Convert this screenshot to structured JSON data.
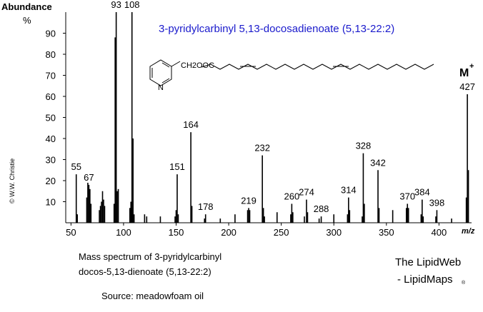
{
  "chart_data": {
    "type": "spectrum",
    "title": "3-pyridylcarbinyl 5,13-docosadienoate (5,13-22:2)",
    "y_label": "Abundance",
    "y_unit": "%",
    "x_label": "m/z",
    "molecular_ion": "M",
    "molecular_ion_charge": "+",
    "structure": {
      "group": "CH2OOC",
      "atom": "N"
    },
    "copyright": "© W.W. Christie",
    "caption": [
      "Mass spectrum of 3-pyridylcarbinyl",
      "docos-5,13-dienoate (5,13-22:2)"
    ],
    "source": "Source:  meadowfoam oil",
    "credit": [
      "The LipidWeb",
      "- LipidMaps",
      "®"
    ],
    "color": "#000000",
    "x": [
      55,
      56,
      65,
      66,
      67,
      68,
      69,
      77,
      78,
      79,
      80,
      81,
      82,
      91,
      92,
      93,
      94,
      95,
      106,
      107,
      108,
      109,
      110,
      120,
      122,
      135,
      149,
      150,
      151,
      152,
      164,
      165,
      177,
      178,
      192,
      206,
      218,
      219,
      220,
      232,
      233,
      234,
      246,
      259,
      260,
      261,
      272,
      274,
      275,
      286,
      288,
      300,
      313,
      314,
      315,
      327,
      328,
      329,
      342,
      343,
      356,
      369,
      370,
      371,
      383,
      384,
      385,
      397,
      398,
      412,
      426,
      427,
      428
    ],
    "values": [
      23,
      4,
      12,
      19,
      18,
      16,
      9,
      6,
      8,
      10,
      15,
      11,
      8,
      9,
      88,
      100,
      15,
      16,
      7,
      10,
      100,
      40,
      4,
      4,
      3,
      3,
      3,
      6,
      23,
      4,
      43,
      8,
      2,
      4,
      2,
      4,
      6,
      7,
      6,
      32,
      7,
      3,
      5,
      4,
      9,
      5,
      3,
      11,
      5,
      2,
      3,
      4,
      4,
      12,
      6,
      3,
      33,
      9,
      25,
      7,
      6,
      7,
      9,
      7,
      4,
      11,
      3,
      3,
      6,
      2,
      12,
      61,
      25
    ],
    "peak_labels": [
      55,
      67,
      93,
      108,
      151,
      164,
      178,
      219,
      232,
      260,
      274,
      288,
      314,
      328,
      342,
      370,
      384,
      398,
      427
    ],
    "xlim": [
      45,
      431
    ],
    "ylim": [
      0,
      100
    ],
    "xticks": [
      50,
      100,
      150,
      200,
      250,
      300,
      350,
      400
    ],
    "yticks": [
      10,
      20,
      30,
      40,
      50,
      60,
      70,
      80,
      90
    ]
  }
}
